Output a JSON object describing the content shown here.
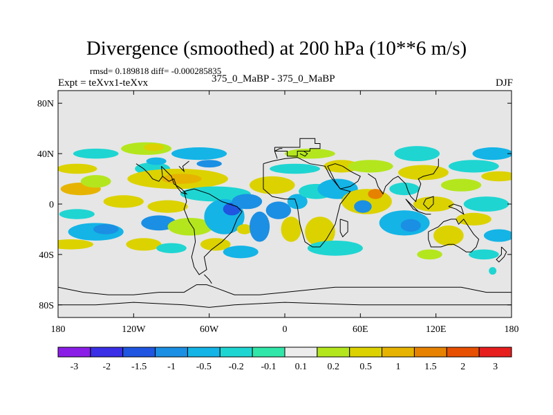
{
  "title": "Divergence (smoothed) at 200 hPa (10**6 m/s)",
  "stats": "rmsd= 0.189818 diff= -0.000285835",
  "experiment": "Expt = teXvx1-teXvx",
  "center_label": "375_0_MaBP - 375_0_MaBP",
  "season": "DJF",
  "chart_data": {
    "type": "heatmap",
    "title": "Divergence (smoothed) at 200 hPa (10**6 m/s)",
    "xlim": [
      -180,
      180
    ],
    "ylim": [
      -90,
      90
    ],
    "x_ticks": [
      {
        "value": -180,
        "label": "180"
      },
      {
        "value": -120,
        "label": "120W"
      },
      {
        "value": -60,
        "label": "60W"
      },
      {
        "value": 0,
        "label": "0"
      },
      {
        "value": 60,
        "label": "60E"
      },
      {
        "value": 120,
        "label": "120E"
      },
      {
        "value": 180,
        "label": "180"
      }
    ],
    "y_ticks": [
      {
        "value": 80,
        "label": "80N"
      },
      {
        "value": 40,
        "label": "40N"
      },
      {
        "value": 0,
        "label": "0"
      },
      {
        "value": -40,
        "label": "40S"
      },
      {
        "value": -80,
        "label": "80S"
      }
    ],
    "colorbar": {
      "labels": [
        "-3",
        "-2",
        "-1.5",
        "-1",
        "-0.5",
        "-0.2",
        "-0.1",
        "0.1",
        "0.2",
        "0.5",
        "1",
        "1.5",
        "2",
        "3"
      ],
      "colors": [
        "#8a1ee6",
        "#3a2ee6",
        "#1f55e0",
        "#1b8fe3",
        "#14b4e6",
        "#1fd5d2",
        "#30e6a8",
        "#ececec",
        "#b4e61e",
        "#dcd200",
        "#e6b400",
        "#e68200",
        "#e65000",
        "#e61e1e"
      ]
    },
    "blobs": [
      {
        "lon": -165,
        "lat": 28,
        "rx": 16,
        "ry": 4,
        "bin": 9
      },
      {
        "lon": -162,
        "lat": 12,
        "rx": 16,
        "ry": 5,
        "bin": 10
      },
      {
        "lon": -150,
        "lat": 40,
        "rx": 18,
        "ry": 4,
        "bin": 5
      },
      {
        "lon": -150,
        "lat": 18,
        "rx": 12,
        "ry": 5,
        "bin": 8
      },
      {
        "lon": -128,
        "lat": 2,
        "rx": 16,
        "ry": 5,
        "bin": 9
      },
      {
        "lon": -165,
        "lat": -8,
        "rx": 14,
        "ry": 4,
        "bin": 5
      },
      {
        "lon": -150,
        "lat": -22,
        "rx": 22,
        "ry": 7,
        "bin": 4
      },
      {
        "lon": -142,
        "lat": -20,
        "rx": 10,
        "ry": 4,
        "bin": 3
      },
      {
        "lon": -170,
        "lat": -32,
        "rx": 18,
        "ry": 4,
        "bin": 9
      },
      {
        "lon": -110,
        "lat": 44,
        "rx": 20,
        "ry": 5,
        "bin": 8
      },
      {
        "lon": -104,
        "lat": 45,
        "rx": 8,
        "ry": 3,
        "bin": 9
      },
      {
        "lon": -105,
        "lat": 28,
        "rx": 14,
        "ry": 5,
        "bin": 5
      },
      {
        "lon": -102,
        "lat": 34,
        "rx": 8,
        "ry": 3,
        "bin": 4
      },
      {
        "lon": -85,
        "lat": 20,
        "rx": 40,
        "ry": 8,
        "bin": 9
      },
      {
        "lon": -82,
        "lat": 20,
        "rx": 16,
        "ry": 4,
        "bin": 10
      },
      {
        "lon": -93,
        "lat": -2,
        "rx": 16,
        "ry": 5,
        "bin": 9
      },
      {
        "lon": -100,
        "lat": -15,
        "rx": 14,
        "ry": 6,
        "bin": 3
      },
      {
        "lon": -112,
        "lat": -32,
        "rx": 14,
        "ry": 5,
        "bin": 9
      },
      {
        "lon": -90,
        "lat": -35,
        "rx": 12,
        "ry": 4,
        "bin": 5
      },
      {
        "lon": -75,
        "lat": -18,
        "rx": 18,
        "ry": 7,
        "bin": 8
      },
      {
        "lon": -68,
        "lat": 40,
        "rx": 22,
        "ry": 5,
        "bin": 4
      },
      {
        "lon": -60,
        "lat": 32,
        "rx": 10,
        "ry": 3,
        "bin": 3
      },
      {
        "lon": -55,
        "lat": 8,
        "rx": 28,
        "ry": 6,
        "bin": 5
      },
      {
        "lon": -48,
        "lat": -10,
        "rx": 16,
        "ry": 14,
        "bin": 4
      },
      {
        "lon": -42,
        "lat": -4,
        "rx": 7,
        "ry": 5,
        "bin": 2
      },
      {
        "lon": -30,
        "lat": 2,
        "rx": 12,
        "ry": 6,
        "bin": 3
      },
      {
        "lon": -32,
        "lat": -20,
        "rx": 6,
        "ry": 4,
        "bin": 9
      },
      {
        "lon": -55,
        "lat": -32,
        "rx": 12,
        "ry": 5,
        "bin": 9
      },
      {
        "lon": -35,
        "lat": -38,
        "rx": 14,
        "ry": 5,
        "bin": 4
      },
      {
        "lon": -20,
        "lat": -18,
        "rx": 8,
        "ry": 12,
        "bin": 3
      },
      {
        "lon": -10,
        "lat": 15,
        "rx": 18,
        "ry": 7,
        "bin": 9
      },
      {
        "lon": -5,
        "lat": -5,
        "rx": 10,
        "ry": 7,
        "bin": 3
      },
      {
        "lon": 5,
        "lat": -20,
        "rx": 8,
        "ry": 10,
        "bin": 9
      },
      {
        "lon": 10,
        "lat": 2,
        "rx": 8,
        "ry": 6,
        "bin": 4
      },
      {
        "lon": 8,
        "lat": 28,
        "rx": 20,
        "ry": 4,
        "bin": 5
      },
      {
        "lon": 20,
        "lat": 40,
        "rx": 20,
        "ry": 4,
        "bin": 8
      },
      {
        "lon": 25,
        "lat": 10,
        "rx": 14,
        "ry": 6,
        "bin": 5
      },
      {
        "lon": 28,
        "lat": -22,
        "rx": 12,
        "ry": 12,
        "bin": 9
      },
      {
        "lon": 42,
        "lat": 12,
        "rx": 16,
        "ry": 8,
        "bin": 4
      },
      {
        "lon": 45,
        "lat": 30,
        "rx": 14,
        "ry": 5,
        "bin": 9
      },
      {
        "lon": 40,
        "lat": -35,
        "rx": 22,
        "ry": 6,
        "bin": 5
      },
      {
        "lon": 65,
        "lat": 2,
        "rx": 20,
        "ry": 10,
        "bin": 9
      },
      {
        "lon": 72,
        "lat": 8,
        "rx": 6,
        "ry": 4,
        "bin": 11
      },
      {
        "lon": 62,
        "lat": -2,
        "rx": 7,
        "ry": 5,
        "bin": 3
      },
      {
        "lon": 95,
        "lat": -15,
        "rx": 20,
        "ry": 10,
        "bin": 4
      },
      {
        "lon": 100,
        "lat": -17,
        "rx": 8,
        "ry": 5,
        "bin": 3
      },
      {
        "lon": 68,
        "lat": 30,
        "rx": 18,
        "ry": 5,
        "bin": 8
      },
      {
        "lon": 105,
        "lat": 40,
        "rx": 18,
        "ry": 6,
        "bin": 5
      },
      {
        "lon": 110,
        "lat": 25,
        "rx": 20,
        "ry": 6,
        "bin": 9
      },
      {
        "lon": 95,
        "lat": 12,
        "rx": 12,
        "ry": 5,
        "bin": 5
      },
      {
        "lon": 118,
        "lat": 0,
        "rx": 16,
        "ry": 6,
        "bin": 9
      },
      {
        "lon": 130,
        "lat": -25,
        "rx": 12,
        "ry": 8,
        "bin": 9
      },
      {
        "lon": 140,
        "lat": 15,
        "rx": 16,
        "ry": 5,
        "bin": 8
      },
      {
        "lon": 150,
        "lat": 30,
        "rx": 20,
        "ry": 5,
        "bin": 5
      },
      {
        "lon": 165,
        "lat": 40,
        "rx": 16,
        "ry": 5,
        "bin": 4
      },
      {
        "lon": 170,
        "lat": 22,
        "rx": 14,
        "ry": 4,
        "bin": 9
      },
      {
        "lon": 160,
        "lat": 0,
        "rx": 18,
        "ry": 6,
        "bin": 5
      },
      {
        "lon": 150,
        "lat": -12,
        "rx": 14,
        "ry": 5,
        "bin": 9
      },
      {
        "lon": 170,
        "lat": -25,
        "rx": 12,
        "ry": 5,
        "bin": 4
      },
      {
        "lon": 158,
        "lat": -40,
        "rx": 12,
        "ry": 4,
        "bin": 5
      },
      {
        "lon": 165,
        "lat": -53,
        "rx": 3,
        "ry": 3,
        "bin": 5
      },
      {
        "lon": 115,
        "lat": -40,
        "rx": 10,
        "ry": 4,
        "bin": 8
      }
    ],
    "continent_outlines": [
      [
        [
          -8,
          45
        ],
        [
          -8,
          42
        ],
        [
          2,
          42
        ],
        [
          2,
          38
        ],
        [
          10,
          38
        ],
        [
          10,
          42
        ],
        [
          20,
          42
        ],
        [
          20,
          44
        ],
        [
          28,
          44
        ],
        [
          28,
          48
        ],
        [
          24,
          48
        ],
        [
          24,
          52
        ],
        [
          12,
          52
        ],
        [
          12,
          45
        ],
        [
          -8,
          45
        ]
      ],
      [
        [
          -17,
          32
        ],
        [
          -17,
          12
        ],
        [
          -10,
          6
        ],
        [
          0,
          4
        ],
        [
          8,
          4
        ],
        [
          10,
          -2
        ],
        [
          12,
          -16
        ],
        [
          16,
          -30
        ],
        [
          22,
          -34
        ],
        [
          28,
          -34
        ],
        [
          33,
          -28
        ],
        [
          40,
          -16
        ],
        [
          42,
          -8
        ],
        [
          44,
          0
        ],
        [
          52,
          10
        ],
        [
          44,
          12
        ],
        [
          36,
          22
        ],
        [
          32,
          30
        ],
        [
          20,
          32
        ],
        [
          10,
          37
        ],
        [
          0,
          36
        ],
        [
          -10,
          34
        ],
        [
          -17,
          32
        ]
      ],
      [
        [
          -80,
          10
        ],
        [
          -78,
          2
        ],
        [
          -80,
          -4
        ],
        [
          -76,
          -14
        ],
        [
          -72,
          -20
        ],
        [
          -71,
          -30
        ],
        [
          -74,
          -42
        ],
        [
          -72,
          -50
        ],
        [
          -68,
          -56
        ],
        [
          -62,
          -52
        ],
        [
          -64,
          -42
        ],
        [
          -58,
          -36
        ],
        [
          -50,
          -30
        ],
        [
          -42,
          -22
        ],
        [
          -38,
          -12
        ],
        [
          -34,
          -6
        ],
        [
          -38,
          -2
        ],
        [
          -50,
          2
        ],
        [
          -60,
          8
        ],
        [
          -72,
          12
        ],
        [
          -80,
          10
        ]
      ],
      [
        [
          -98,
          30
        ],
        [
          -97,
          22
        ],
        [
          -92,
          18
        ],
        [
          -88,
          20
        ],
        [
          -86,
          14
        ],
        [
          -82,
          9
        ],
        [
          -78,
          8
        ],
        [
          -82,
          12
        ],
        [
          -88,
          16
        ],
        [
          -90,
          22
        ],
        [
          -94,
          26
        ],
        [
          -98,
          30
        ]
      ],
      [
        [
          -118,
          32
        ],
        [
          -112,
          28
        ],
        [
          -108,
          24
        ],
        [
          -105,
          20
        ],
        [
          -100,
          18
        ],
        [
          -97,
          22
        ]
      ],
      [
        [
          -84,
          30
        ],
        [
          -80,
          26
        ],
        [
          -81,
          30
        ],
        [
          -76,
          34
        ]
      ],
      [
        [
          -64,
          -56
        ],
        [
          -60,
          -60
        ],
        [
          -58,
          -63
        ]
      ],
      [
        [
          46,
          30
        ],
        [
          52,
          26
        ],
        [
          56,
          24
        ],
        [
          60,
          22
        ],
        [
          58,
          18
        ],
        [
          52,
          14
        ],
        [
          44,
          12
        ],
        [
          40,
          18
        ],
        [
          36,
          26
        ],
        [
          34,
          30
        ],
        [
          40,
          32
        ],
        [
          46,
          30
        ]
      ],
      [
        [
          66,
          24
        ],
        [
          72,
          20
        ],
        [
          74,
          14
        ],
        [
          78,
          8
        ],
        [
          80,
          14
        ],
        [
          86,
          20
        ],
        [
          90,
          22
        ],
        [
          92,
          20
        ],
        [
          96,
          16
        ],
        [
          98,
          10
        ],
        [
          100,
          6
        ],
        [
          104,
          2
        ],
        [
          106,
          10
        ],
        [
          108,
          16
        ],
        [
          106,
          20
        ],
        [
          110,
          22
        ],
        [
          118,
          24
        ],
        [
          122,
          30
        ],
        [
          122,
          36
        ]
      ],
      [
        [
          -6,
          36
        ],
        [
          -8,
          42
        ],
        [
          -4,
          44
        ],
        [
          -2,
          44
        ]
      ],
      [
        [
          12,
          40
        ],
        [
          16,
          38
        ],
        [
          18,
          40
        ],
        [
          15,
          42
        ]
      ],
      [
        [
          96,
          4
        ],
        [
          100,
          0
        ],
        [
          106,
          -6
        ],
        [
          102,
          -4
        ],
        [
          96,
          4
        ]
      ],
      [
        [
          106,
          -6
        ],
        [
          112,
          -8
        ],
        [
          116,
          -8
        ]
      ],
      [
        [
          110,
          0
        ],
        [
          112,
          4
        ],
        [
          118,
          6
        ],
        [
          118,
          0
        ],
        [
          114,
          -4
        ],
        [
          110,
          0
        ]
      ],
      [
        [
          130,
          -2
        ],
        [
          136,
          -4
        ],
        [
          142,
          -8
        ],
        [
          140,
          -2
        ],
        [
          134,
          0
        ],
        [
          130,
          -2
        ]
      ],
      [
        [
          114,
          -22
        ],
        [
          118,
          -20
        ],
        [
          122,
          -18
        ],
        [
          126,
          -14
        ],
        [
          132,
          -12
        ],
        [
          136,
          -12
        ],
        [
          138,
          -16
        ],
        [
          142,
          -12
        ],
        [
          146,
          -18
        ],
        [
          150,
          -24
        ],
        [
          154,
          -28
        ],
        [
          152,
          -34
        ],
        [
          148,
          -38
        ],
        [
          144,
          -38
        ],
        [
          138,
          -34
        ],
        [
          134,
          -32
        ],
        [
          130,
          -32
        ],
        [
          124,
          -34
        ],
        [
          116,
          -34
        ],
        [
          114,
          -28
        ],
        [
          114,
          -22
        ]
      ],
      [
        [
          172,
          -34
        ],
        [
          176,
          -38
        ],
        [
          174,
          -42
        ],
        [
          170,
          -46
        ],
        [
          168,
          -44
        ],
        [
          172,
          -40
        ],
        [
          172,
          -34
        ]
      ],
      [
        [
          44,
          -12
        ],
        [
          50,
          -14
        ],
        [
          50,
          -22
        ],
        [
          46,
          -26
        ],
        [
          44,
          -22
        ],
        [
          44,
          -12
        ]
      ],
      [
        [
          -180,
          -66
        ],
        [
          -160,
          -70
        ],
        [
          -140,
          -72
        ],
        [
          -120,
          -72
        ],
        [
          -100,
          -70
        ],
        [
          -80,
          -70
        ],
        [
          -70,
          -64
        ],
        [
          -62,
          -64
        ],
        [
          -56,
          -66
        ],
        [
          -40,
          -72
        ],
        [
          -20,
          -72
        ],
        [
          0,
          -70
        ],
        [
          20,
          -68
        ],
        [
          40,
          -66
        ],
        [
          60,
          -66
        ],
        [
          80,
          -66
        ],
        [
          100,
          -66
        ],
        [
          120,
          -66
        ],
        [
          140,
          -66
        ],
        [
          160,
          -70
        ],
        [
          180,
          -70
        ]
      ],
      [
        [
          -180,
          -80
        ],
        [
          -150,
          -80
        ],
        [
          -120,
          -78
        ],
        [
          -80,
          -80
        ],
        [
          -60,
          -82
        ],
        [
          -40,
          -80
        ],
        [
          0,
          -78
        ],
        [
          60,
          -80
        ],
        [
          120,
          -80
        ],
        [
          180,
          -80
        ]
      ]
    ]
  }
}
